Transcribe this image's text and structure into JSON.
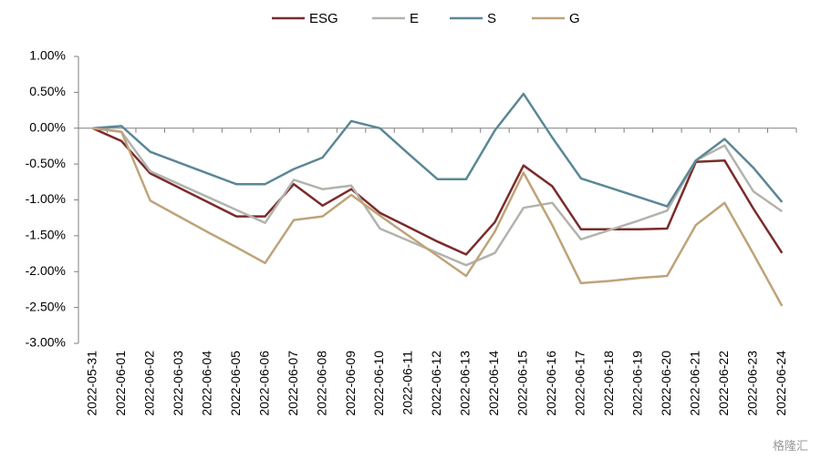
{
  "chart_data": {
    "type": "line",
    "title": "",
    "xlabel": "",
    "ylabel": "",
    "ylim": [
      -0.03,
      0.01
    ],
    "y_ticks": [
      "1.00%",
      "0.50%",
      "0.00%",
      "-0.50%",
      "-1.00%",
      "-1.50%",
      "-2.00%",
      "-2.50%",
      "-3.00%"
    ],
    "y_tick_values": [
      0.01,
      0.005,
      0,
      -0.005,
      -0.01,
      -0.015,
      -0.02,
      -0.025,
      -0.03
    ],
    "grid": false,
    "legend_position": "top-center",
    "categories": [
      "2022-05-31",
      "2022-06-01",
      "2022-06-02",
      "2022-06-03",
      "2022-06-04",
      "2022-06-05",
      "2022-06-06",
      "2022-06-07",
      "2022-06-08",
      "2022-06-09",
      "2022-06-10",
      "2022-06-11",
      "2022-06-12",
      "2022-06-13",
      "2022-06-14",
      "2022-06-15",
      "2022-06-16",
      "2022-06-17",
      "2022-06-18",
      "2022-06-19",
      "2022-06-20",
      "2022-06-21",
      "2022-06-22",
      "2022-06-23",
      "2022-06-24"
    ],
    "series": [
      {
        "name": "ESG",
        "color": "#7b2b2b",
        "values": [
          0.0,
          -0.0018,
          -0.0063,
          -0.0083,
          -0.0103,
          -0.0123,
          -0.0123,
          -0.0078,
          -0.0108,
          -0.0085,
          -0.0118,
          -0.0138,
          -0.0158,
          -0.0176,
          -0.0131,
          -0.0052,
          -0.0081,
          -0.0141,
          -0.0141,
          -0.0141,
          -0.014,
          -0.0047,
          -0.0045,
          -0.0112,
          -0.0174
        ]
      },
      {
        "name": "E",
        "color": "#b3b3ad",
        "values": [
          0.0,
          -0.0005,
          -0.006,
          -0.0078,
          -0.0096,
          -0.0114,
          -0.0132,
          -0.0072,
          -0.0085,
          -0.008,
          -0.014,
          -0.0157,
          -0.0174,
          -0.0191,
          -0.0174,
          -0.0111,
          -0.0104,
          -0.0155,
          -0.0142,
          -0.0129,
          -0.0115,
          -0.0045,
          -0.0024,
          -0.0088,
          -0.0116
        ]
      },
      {
        "name": "S",
        "color": "#5b8796",
        "values": [
          0.0,
          0.0003,
          -0.0033,
          -0.0048,
          -0.0063,
          -0.0078,
          -0.0078,
          -0.0057,
          -0.0041,
          0.001,
          0.0,
          -0.0036,
          -0.0071,
          -0.0071,
          -0.0003,
          0.0048,
          -0.0013,
          -0.007,
          -0.0083,
          -0.0096,
          -0.0109,
          -0.0045,
          -0.0015,
          -0.0055,
          -0.0103
        ]
      },
      {
        "name": "G",
        "color": "#bfa37a",
        "values": [
          0.0,
          -0.0005,
          -0.0101,
          -0.0123,
          -0.0145,
          -0.0166,
          -0.0188,
          -0.0128,
          -0.0123,
          -0.0093,
          -0.0122,
          -0.015,
          -0.0178,
          -0.0206,
          -0.0144,
          -0.0062,
          -0.0135,
          -0.0216,
          -0.0213,
          -0.0209,
          -0.0206,
          -0.0135,
          -0.0104,
          -0.0175,
          -0.0248
        ]
      }
    ]
  },
  "watermark": {
    "text": "格隆汇"
  }
}
